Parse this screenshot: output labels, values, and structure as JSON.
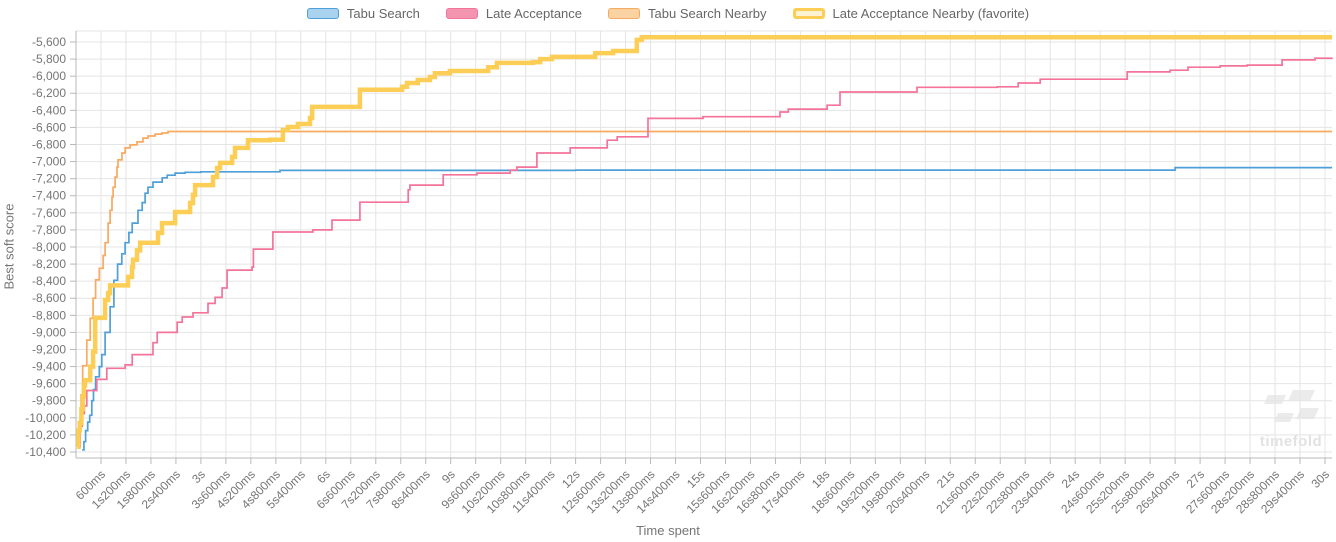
{
  "chart_data": {
    "type": "line",
    "title": "",
    "xlabel": "Time spent",
    "ylabel": "Best soft score",
    "grid": true,
    "legend_position": "top",
    "x_range_ms": [
      0,
      30170
    ],
    "y_range": [
      -10470,
      -5471
    ],
    "x_ticks_ms": [
      600,
      1200,
      1800,
      2400,
      3000,
      3600,
      4200,
      4800,
      5400,
      6000,
      6600,
      7200,
      7800,
      8400,
      9000,
      9600,
      10200,
      10800,
      11400,
      12000,
      12600,
      13200,
      13800,
      14400,
      15000,
      15600,
      16200,
      16800,
      17400,
      18000,
      18600,
      19200,
      19800,
      20400,
      21000,
      21600,
      22200,
      22800,
      23400,
      24000,
      24600,
      25200,
      25800,
      26400,
      27000,
      27600,
      28200,
      28800,
      29400,
      30000
    ],
    "x_tick_labels": [
      "600ms",
      "1s200ms",
      "1s800ms",
      "2s400ms",
      "3s",
      "3s600ms",
      "4s200ms",
      "4s800ms",
      "5s400ms",
      "6s",
      "6s600ms",
      "7s200ms",
      "7s800ms",
      "8s400ms",
      "9s",
      "9s600ms",
      "10s200ms",
      "10s800ms",
      "11s400ms",
      "12s",
      "12s600ms",
      "13s200ms",
      "13s800ms",
      "14s400ms",
      "15s",
      "15s600ms",
      "16s200ms",
      "16s800ms",
      "17s400ms",
      "18s",
      "18s600ms",
      "19s200ms",
      "19s800ms",
      "20s400ms",
      "21s",
      "21s600ms",
      "22s200ms",
      "22s800ms",
      "23s400ms",
      "24s",
      "24s600ms",
      "25s200ms",
      "25s800ms",
      "26s400ms",
      "27s",
      "27s600ms",
      "28s200ms",
      "28s800ms",
      "29s400ms",
      "30s"
    ],
    "y_ticks": [
      -5600,
      -5800,
      -6000,
      -6200,
      -6400,
      -6600,
      -6800,
      -7000,
      -7200,
      -7400,
      -7600,
      -7800,
      -8000,
      -8200,
      -8400,
      -8600,
      -8800,
      -9000,
      -9200,
      -9400,
      -9600,
      -9800,
      -10000,
      -10200,
      -10400
    ],
    "y_tick_labels": [
      "-5,600",
      "-5,800",
      "-6,000",
      "-6,200",
      "-6,400",
      "-6,600",
      "-6,800",
      "-7,000",
      "-7,200",
      "-7,400",
      "-7,600",
      "-7,800",
      "-8,000",
      "-8,200",
      "-8,400",
      "-8,600",
      "-8,800",
      "-9,000",
      "-9,200",
      "-9,400",
      "-9,600",
      "-9,800",
      "-10,000",
      "-10,200",
      "-10,400"
    ],
    "series": [
      {
        "name": "Tabu Search",
        "color": "#4f9fd8",
        "legend_fill": "#a9d2ee",
        "emphasis": false,
        "points": [
          [
            150,
            -10375
          ],
          [
            190,
            -10280
          ],
          [
            230,
            -10150
          ],
          [
            280,
            -10050
          ],
          [
            330,
            -9970
          ],
          [
            380,
            -9800
          ],
          [
            420,
            -9670
          ],
          [
            470,
            -9520
          ],
          [
            560,
            -9400
          ],
          [
            620,
            -9260
          ],
          [
            700,
            -9000
          ],
          [
            820,
            -8700
          ],
          [
            910,
            -8390
          ],
          [
            1000,
            -8200
          ],
          [
            1100,
            -8080
          ],
          [
            1180,
            -7950
          ],
          [
            1270,
            -7830
          ],
          [
            1350,
            -7720
          ],
          [
            1490,
            -7570
          ],
          [
            1590,
            -7480
          ],
          [
            1660,
            -7370
          ],
          [
            1730,
            -7300
          ],
          [
            1850,
            -7240
          ],
          [
            2070,
            -7190
          ],
          [
            2190,
            -7160
          ],
          [
            2380,
            -7135
          ],
          [
            2620,
            -7125
          ],
          [
            3000,
            -7120
          ],
          [
            4900,
            -7103
          ],
          [
            12000,
            -7100
          ],
          [
            26400,
            -7070
          ],
          [
            30170,
            -7070
          ]
        ]
      },
      {
        "name": "Late Acceptance",
        "color": "#f4739a",
        "legend_fill": "#f495af",
        "emphasis": false,
        "points": [
          [
            60,
            -10340
          ],
          [
            100,
            -10100
          ],
          [
            150,
            -9950
          ],
          [
            200,
            -9860
          ],
          [
            260,
            -9680
          ],
          [
            500,
            -9550
          ],
          [
            740,
            -9420
          ],
          [
            1180,
            -9380
          ],
          [
            1350,
            -9260
          ],
          [
            1850,
            -9120
          ],
          [
            1950,
            -9000
          ],
          [
            2430,
            -8880
          ],
          [
            2550,
            -8820
          ],
          [
            2810,
            -8770
          ],
          [
            3170,
            -8660
          ],
          [
            3340,
            -8590
          ],
          [
            3510,
            -8480
          ],
          [
            3630,
            -8270
          ],
          [
            4230,
            -8235
          ],
          [
            4260,
            -8025
          ],
          [
            4730,
            -7825
          ],
          [
            5690,
            -7800
          ],
          [
            6150,
            -7685
          ],
          [
            6820,
            -7475
          ],
          [
            7980,
            -7330
          ],
          [
            8020,
            -7275
          ],
          [
            8820,
            -7155
          ],
          [
            9630,
            -7135
          ],
          [
            10430,
            -7100
          ],
          [
            10590,
            -7065
          ],
          [
            11070,
            -6900
          ],
          [
            11870,
            -6840
          ],
          [
            12760,
            -6750
          ],
          [
            13000,
            -6710
          ],
          [
            13740,
            -6495
          ],
          [
            15060,
            -6475
          ],
          [
            16910,
            -6420
          ],
          [
            17110,
            -6385
          ],
          [
            18040,
            -6340
          ],
          [
            18350,
            -6185
          ],
          [
            20200,
            -6130
          ],
          [
            22130,
            -6125
          ],
          [
            22630,
            -6080
          ],
          [
            23160,
            -6035
          ],
          [
            25250,
            -5950
          ],
          [
            26280,
            -5930
          ],
          [
            26710,
            -5895
          ],
          [
            27480,
            -5880
          ],
          [
            28130,
            -5870
          ],
          [
            28970,
            -5810
          ],
          [
            29760,
            -5790
          ],
          [
            30170,
            -5785
          ]
        ]
      },
      {
        "name": "Tabu Search Nearby",
        "color": "#f9aa60",
        "legend_fill": "#fbd2a2",
        "emphasis": false,
        "points": [
          [
            60,
            -10320
          ],
          [
            90,
            -10100
          ],
          [
            120,
            -9730
          ],
          [
            160,
            -9390
          ],
          [
            260,
            -9090
          ],
          [
            340,
            -8835
          ],
          [
            410,
            -8600
          ],
          [
            470,
            -8385
          ],
          [
            560,
            -8250
          ],
          [
            650,
            -8100
          ],
          [
            700,
            -7950
          ],
          [
            770,
            -7720
          ],
          [
            820,
            -7570
          ],
          [
            865,
            -7415
          ],
          [
            890,
            -7300
          ],
          [
            940,
            -7180
          ],
          [
            985,
            -7065
          ],
          [
            1010,
            -6980
          ],
          [
            1105,
            -6900
          ],
          [
            1180,
            -6840
          ],
          [
            1300,
            -6805
          ],
          [
            1465,
            -6770
          ],
          [
            1610,
            -6725
          ],
          [
            1730,
            -6700
          ],
          [
            1900,
            -6678
          ],
          [
            2065,
            -6665
          ],
          [
            2210,
            -6648
          ],
          [
            30170,
            -6648
          ]
        ]
      },
      {
        "name": "Late Acceptance Nearby (favorite)",
        "color": "#fcce55",
        "legend_fill": "#fdf3d2",
        "emphasis": true,
        "points": [
          [
            30,
            -10340
          ],
          [
            60,
            -10150
          ],
          [
            90,
            -10060
          ],
          [
            130,
            -9900
          ],
          [
            160,
            -9750
          ],
          [
            190,
            -9620
          ],
          [
            215,
            -9560
          ],
          [
            340,
            -9400
          ],
          [
            410,
            -9225
          ],
          [
            460,
            -8830
          ],
          [
            700,
            -8620
          ],
          [
            770,
            -8540
          ],
          [
            820,
            -8450
          ],
          [
            1250,
            -8350
          ],
          [
            1345,
            -8235
          ],
          [
            1370,
            -8150
          ],
          [
            1465,
            -8040
          ],
          [
            1540,
            -7950
          ],
          [
            1970,
            -7835
          ],
          [
            2065,
            -7720
          ],
          [
            2380,
            -7590
          ],
          [
            2740,
            -7485
          ],
          [
            2810,
            -7390
          ],
          [
            2860,
            -7275
          ],
          [
            3290,
            -7180
          ],
          [
            3390,
            -7075
          ],
          [
            3460,
            -7015
          ],
          [
            3750,
            -6945
          ],
          [
            3820,
            -6840
          ],
          [
            4130,
            -6750
          ],
          [
            4660,
            -6745
          ],
          [
            4970,
            -6630
          ],
          [
            5090,
            -6595
          ],
          [
            5330,
            -6560
          ],
          [
            5620,
            -6490
          ],
          [
            5670,
            -6360
          ],
          [
            6820,
            -6160
          ],
          [
            7830,
            -6125
          ],
          [
            7950,
            -6080
          ],
          [
            8210,
            -6045
          ],
          [
            8500,
            -6010
          ],
          [
            8620,
            -5965
          ],
          [
            8980,
            -5940
          ],
          [
            9900,
            -5895
          ],
          [
            10110,
            -5845
          ],
          [
            10980,
            -5835
          ],
          [
            11150,
            -5800
          ],
          [
            11430,
            -5775
          ],
          [
            12470,
            -5730
          ],
          [
            12900,
            -5705
          ],
          [
            13470,
            -5575
          ],
          [
            13590,
            -5545
          ],
          [
            30170,
            -5545
          ]
        ]
      }
    ],
    "colors": {
      "grid": "#e4e4e4",
      "axis_line": "#b8b8b8",
      "tick_label": "#757575",
      "legend_label": "#666666",
      "watermark": "#ebebeb"
    }
  },
  "watermark": {
    "text": "timefold"
  }
}
